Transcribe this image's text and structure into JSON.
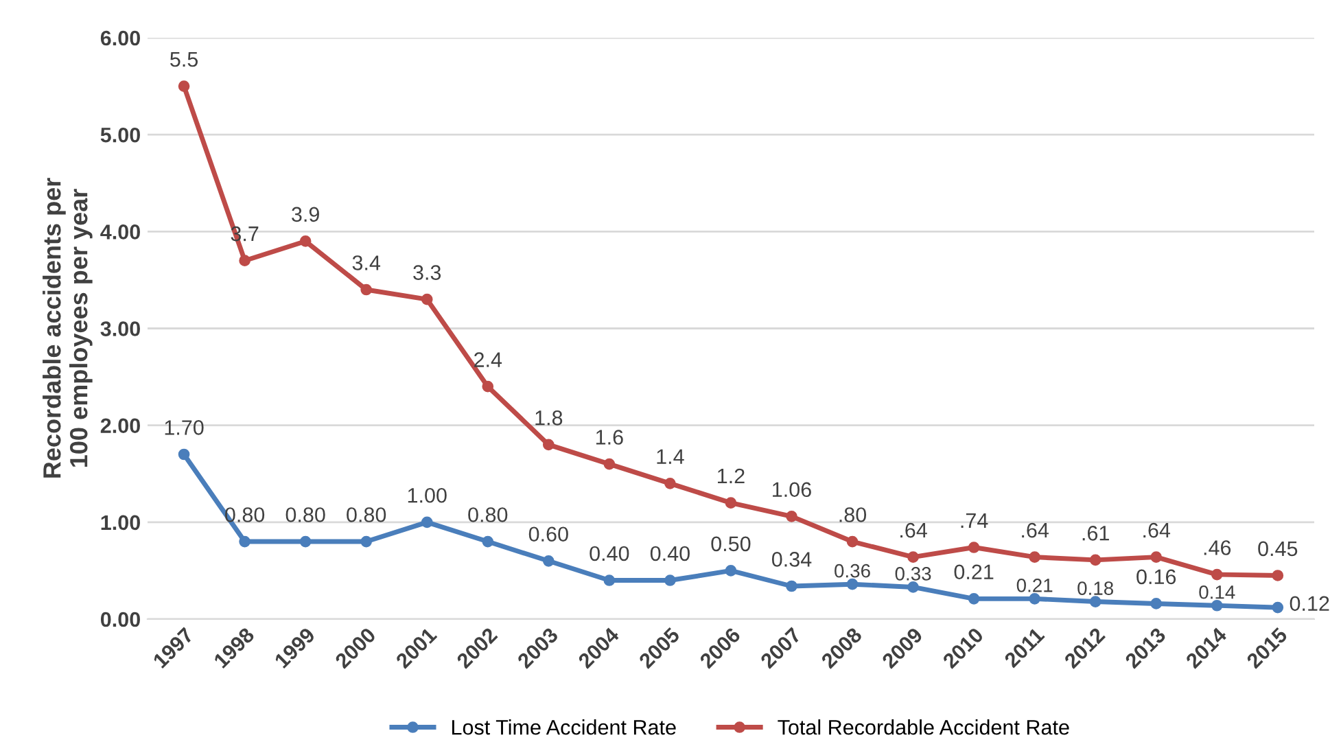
{
  "chart_data": {
    "type": "line",
    "ylabel": "Recordable accidents per\n100 employees per year",
    "categories": [
      "1997",
      "1998",
      "1999",
      "2000",
      "2001",
      "2002",
      "2003",
      "2004",
      "2005",
      "2006",
      "2007",
      "2008",
      "2009",
      "2010",
      "2011",
      "2012",
      "2013",
      "2014",
      "2015"
    ],
    "series": [
      {
        "name": "Lost Time Accident Rate",
        "color": "#4a7ebb",
        "values": [
          1.7,
          0.8,
          0.8,
          0.8,
          1.0,
          0.8,
          0.6,
          0.4,
          0.4,
          0.5,
          0.34,
          0.36,
          0.33,
          0.21,
          0.21,
          0.18,
          0.16,
          0.14,
          0.12
        ],
        "value_labels": [
          "1.70",
          "0.80",
          "0.80",
          "0.80",
          "1.00",
          "0.80",
          "0.60",
          "0.40",
          "0.40",
          "0.50",
          "0.34",
          "0.36",
          "0.33",
          "0.21",
          "0.21",
          "0.18",
          "0.16",
          "0.14",
          "0.12"
        ]
      },
      {
        "name": "Total Recordable Accident Rate",
        "color": "#be4b48",
        "values": [
          5.5,
          3.7,
          3.9,
          3.4,
          3.3,
          2.4,
          1.8,
          1.6,
          1.4,
          1.2,
          1.06,
          0.8,
          0.64,
          0.74,
          0.64,
          0.61,
          0.64,
          0.46,
          0.45
        ],
        "value_labels": [
          "5.5",
          "3.7",
          "3.9",
          "3.4",
          "3.3",
          "2.4",
          "1.8",
          "1.6",
          "1.4",
          "1.2",
          "1.06",
          ".80",
          ".64",
          ".74",
          ".64",
          ".61",
          ".64",
          ".46",
          "0.45"
        ]
      }
    ],
    "ylim": [
      0,
      6
    ],
    "yticks": [
      {
        "value": 0,
        "label": "0.00"
      },
      {
        "value": 1,
        "label": "1.00"
      },
      {
        "value": 2,
        "label": "2.00"
      },
      {
        "value": 3,
        "label": "3.00"
      },
      {
        "value": 4,
        "label": "4.00"
      },
      {
        "value": 5,
        "label": "5.00"
      },
      {
        "value": 6,
        "label": "6.00"
      }
    ],
    "grid": "y",
    "legend": "bottom",
    "marker": "circle",
    "line_style": "solid"
  }
}
